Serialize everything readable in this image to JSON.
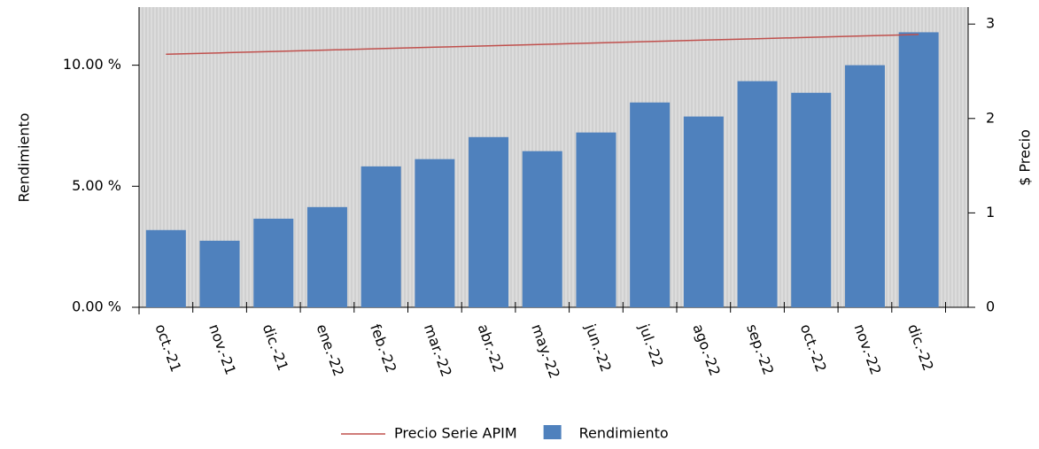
{
  "chart_data": {
    "type": "bar",
    "categories": [
      "oct.-21",
      "nov.-21",
      "dic.-21",
      "ene.-22",
      "feb.-22",
      "mar.-22",
      "abr.-22",
      "may.-22",
      "jun.-22",
      "jul.-22",
      "ago.-22",
      "sep.-22",
      "oct.-22",
      "nov.-22",
      "dic.-22"
    ],
    "series": [
      {
        "name": "Precio Serie APIM",
        "type": "line",
        "axis": "y2",
        "color": "#c0504d",
        "values": [
          2.68,
          2.695,
          2.71,
          2.725,
          2.74,
          2.755,
          2.77,
          2.785,
          2.8,
          2.815,
          2.83,
          2.845,
          2.86,
          2.875,
          2.89
        ]
      },
      {
        "name": "Rendimiento",
        "type": "bar",
        "color": "#4f81bd",
        "values": [
          3.19,
          2.75,
          3.66,
          4.14,
          5.82,
          6.12,
          7.03,
          6.45,
          7.22,
          8.46,
          7.88,
          9.34,
          8.86,
          10.0,
          11.36
        ]
      }
    ],
    "ylabel": "Rendimiento",
    "y2label": "$ Precio",
    "ylim": [
      0,
      12.4
    ],
    "yticks": [
      {
        "value": 0,
        "label": "0.00 %"
      },
      {
        "value": 5,
        "label": "5.00 %"
      },
      {
        "value": 10,
        "label": "10.00 %"
      }
    ],
    "y2lim": [
      0,
      3.18
    ],
    "y2ticks": [
      0,
      1,
      2,
      3
    ],
    "legend": "bottom"
  }
}
